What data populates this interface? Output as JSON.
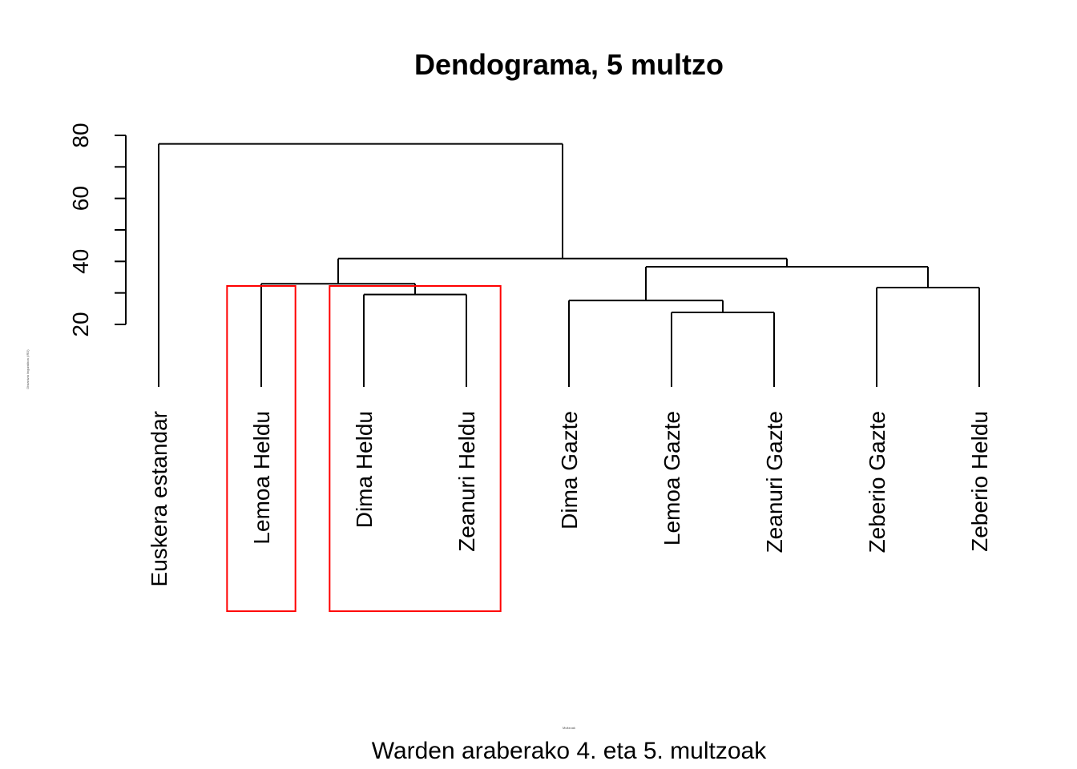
{
  "chart_data": {
    "type": "dendrogram",
    "title": "Dendograma, 5 multzo",
    "subtitle": "Warden araberako 4. eta 5. multzoak",
    "xlabel": "Multzoak",
    "ylabel": "Distantzia linguistikoa (IRD)",
    "yticks": [
      20,
      40,
      60,
      80
    ],
    "ylim": [
      0,
      80
    ],
    "leaves": [
      "Euskera estandar",
      "Lemoa Heldu",
      "Dima Heldu",
      "Zeanuri Heldu",
      "Dima Gazte",
      "Lemoa Gazte",
      "Zeanuri Gazte",
      "Zeberio Gazte",
      "Zeberio Heldu"
    ],
    "merges": [
      {
        "left": "Lemoa Gazte",
        "right": "Zeanuri Gazte",
        "height": 23.8
      },
      {
        "left": "Dima Gazte",
        "right": "(Lemoa Gazte, Zeanuri Gazte)",
        "height": 27.6
      },
      {
        "left": "Dima Heldu",
        "right": "Zeanuri Heldu",
        "height": 29.5
      },
      {
        "left": "Zeberio Gazte",
        "right": "Zeberio Heldu",
        "height": 31.7
      },
      {
        "left": "Lemoa Heldu",
        "right": "(Dima Heldu, Zeanuri Heldu)",
        "height": 32.9
      },
      {
        "left": "(Dima Gazte, Lemoa Gazte, Zeanuri Gazte)",
        "right": "(Zeberio Gazte, Zeberio Heldu)",
        "height": 38.3
      },
      {
        "left": "(Lemoa Heldu, Dima Heldu, Zeanuri Heldu)",
        "right": "(Dima Gazte, Lemoa Gazte, Zeanuri Gazte, Zeberio Gazte, Zeberio Heldu)",
        "height": 40.9
      },
      {
        "left": "Euskera estandar",
        "right": "(all others)",
        "height": 77.3
      }
    ],
    "highlighted_clusters": [
      {
        "members": [
          "Lemoa Heldu"
        ],
        "color": "#ff0000"
      },
      {
        "members": [
          "Dima Heldu",
          "Zeanuri Heldu"
        ],
        "color": "#ff0000"
      }
    ],
    "line_color": "#000000",
    "highlight_color": "#ff0000"
  }
}
